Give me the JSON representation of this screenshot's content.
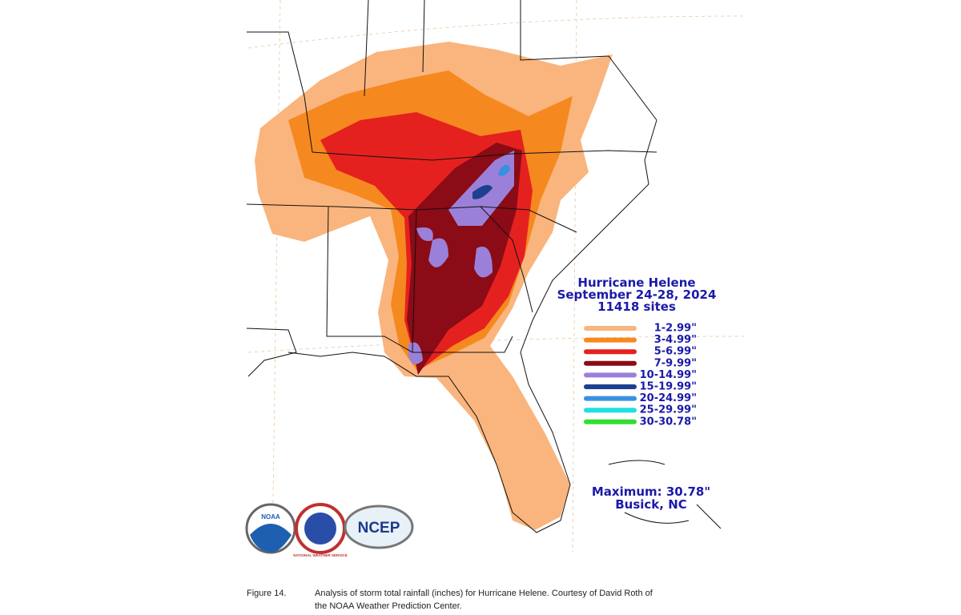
{
  "title": [
    "Hurricane Helene",
    "September 24-28, 2024",
    "11418 sites"
  ],
  "legend": [
    {
      "label": "1-2.99\"",
      "color": "#f9b57d"
    },
    {
      "label": "3-4.99\"",
      "color": "#f5891f"
    },
    {
      "label": "5-6.99\"",
      "color": "#e5211f"
    },
    {
      "label": "7-9.99\"",
      "color": "#8b0b16"
    },
    {
      "label": "10-14.99\"",
      "color": "#9b80d9"
    },
    {
      "label": "15-19.99\"",
      "color": "#1d3f8f"
    },
    {
      "label": "20-24.99\"",
      "color": "#3a90e0"
    },
    {
      "label": "25-29.99\"",
      "color": "#22e0e0"
    },
    {
      "label": "30-30.78\"",
      "color": "#33dd33"
    }
  ],
  "maximum": "Maximum:  30.78\"",
  "location": "Busick, NC",
  "logos": [
    "NOAA",
    "NATIONAL WEATHER SERVICE",
    "NCEP"
  ],
  "caption": {
    "label": "Figure 14.",
    "lines": [
      "Analysis of storm total rainfall (inches) for Hurricane Helene. Courtesy of David Roth of",
      "the NOAA Weather Prediction Center."
    ]
  }
}
